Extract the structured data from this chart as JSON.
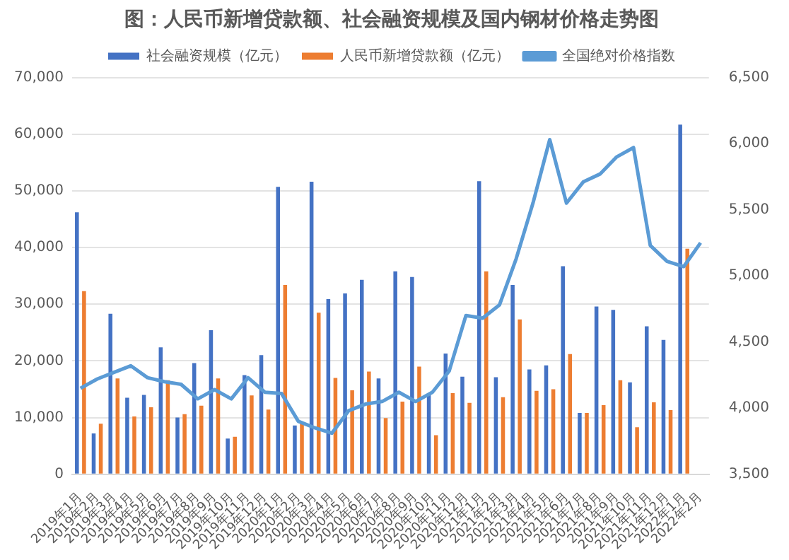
{
  "chart_data": {
    "type": "bar",
    "title": "图：人民币新增贷款额、社会融资规模及国内钢材价格走势图",
    "categories": [
      "2019年1月",
      "2019年2月",
      "2019年3月",
      "2019年4月",
      "2019年5月",
      "2019年6月",
      "2019年7月",
      "2019年8月",
      "2019年9月",
      "2019年10月",
      "2019年11月",
      "2019年12月",
      "2020年1月",
      "2020年2月",
      "2020年3月",
      "2020年4月",
      "2020年5月",
      "2020年6月",
      "2020年7月",
      "2020年8月",
      "2020年9月",
      "2020年10月",
      "2020年11月",
      "2020年12月",
      "2021年1月",
      "2021年2月",
      "2021年3月",
      "2021年4月",
      "2021年5月",
      "2021年6月",
      "2021年7月",
      "2021年8月",
      "2021年9月",
      "2021年10月",
      "2021年11月",
      "2021年12月",
      "2022年1月",
      "2022年2月"
    ],
    "series": [
      {
        "name": "社会融资规模（亿元）",
        "color": "#4472c4",
        "values": [
          46200,
          7200,
          28300,
          13500,
          14000,
          22400,
          10000,
          19600,
          25400,
          6300,
          17500,
          21000,
          50700,
          8600,
          51600,
          30900,
          31900,
          34300,
          16900,
          35800,
          34800,
          14000,
          21300,
          17200,
          51700,
          17100,
          33400,
          18500,
          19200,
          36700,
          10800,
          29600,
          29000,
          16200,
          26100,
          23700,
          61700,
          null
        ]
      },
      {
        "name": "人民币新增贷款额（亿元）",
        "color": "#ed7d31",
        "values": [
          32300,
          8900,
          16900,
          10200,
          11800,
          16600,
          10600,
          12100,
          16900,
          6600,
          13900,
          11400,
          33400,
          9100,
          28500,
          17000,
          14800,
          18100,
          9900,
          12800,
          19000,
          6900,
          14300,
          12600,
          35800,
          13600,
          27300,
          14700,
          15000,
          21200,
          10800,
          12200,
          16600,
          8300,
          12700,
          11300,
          39800,
          null
        ]
      },
      {
        "name": "全国绝对价格指数",
        "type": "line",
        "axis": "y2",
        "color": "#5b9bd5",
        "values": [
          4150,
          4220,
          4270,
          4320,
          4230,
          4200,
          4180,
          4070,
          4140,
          4070,
          4230,
          4120,
          4110,
          3900,
          3850,
          3810,
          3980,
          4030,
          4050,
          4120,
          4050,
          4120,
          4280,
          4700,
          4680,
          4780,
          5130,
          5550,
          6030,
          5550,
          5710,
          5770,
          5900,
          5970,
          5230,
          5110,
          5070,
          5250
        ]
      }
    ],
    "ylim": [
      0,
      70000
    ],
    "yticks": [
      0,
      {
        "value": 10000,
        "label": "10,000"
      },
      {
        "value": 20000,
        "label": "20,000"
      },
      {
        "value": 30000,
        "label": "30,000"
      },
      {
        "value": 40000,
        "label": "40,000"
      },
      {
        "value": 50000,
        "label": "50,000"
      },
      {
        "value": 60000,
        "label": "60,000"
      },
      {
        "value": 70000,
        "label": "70,000"
      }
    ],
    "y2lim": [
      3500,
      6500
    ],
    "y2ticks": [
      {
        "value": 3500,
        "label": "3,500"
      },
      {
        "value": 4000,
        "label": "4,000"
      },
      {
        "value": 4500,
        "label": "4,500"
      },
      {
        "value": 5000,
        "label": "5,000"
      },
      {
        "value": 5500,
        "label": "5,500"
      },
      {
        "value": 6000,
        "label": "6,000"
      },
      {
        "value": 6500,
        "label": "6,500"
      }
    ],
    "grid": "y",
    "legend": "top",
    "marker": "none",
    "line_style": "solid"
  }
}
